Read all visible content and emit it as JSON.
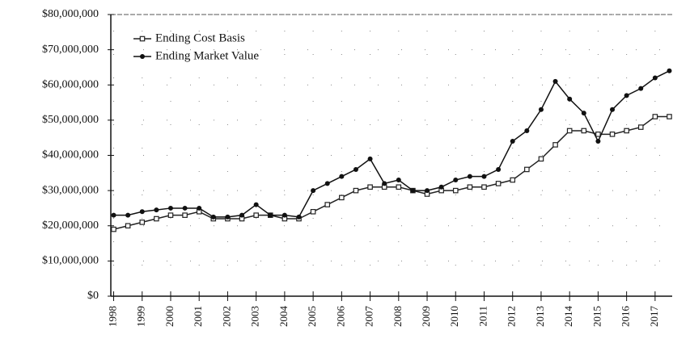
{
  "chart_data": {
    "type": "line",
    "x": [
      1998,
      1998.5,
      1999,
      1999.5,
      2000,
      2000.5,
      2001,
      2001.5,
      2002,
      2002.5,
      2003,
      2003.5,
      2004,
      2004.5,
      2005,
      2005.5,
      2006,
      2006.5,
      2007,
      2007.5,
      2008,
      2008.5,
      2009,
      2009.5,
      2010,
      2010.5,
      2011,
      2011.5,
      2012,
      2012.5,
      2013,
      2013.5,
      2014,
      2014.5,
      2015,
      2015.5,
      2016,
      2016.5,
      2017,
      2017.5
    ],
    "series": [
      {
        "name": "Ending Cost Basis",
        "color": "#222222",
        "marker": "square",
        "values": [
          19000000,
          20000000,
          21000000,
          22000000,
          23000000,
          23000000,
          24000000,
          22000000,
          22000000,
          22000000,
          23000000,
          23000000,
          22000000,
          22000000,
          24000000,
          26000000,
          28000000,
          30000000,
          31000000,
          31000000,
          31000000,
          30000000,
          29000000,
          30000000,
          30000000,
          31000000,
          31000000,
          32000000,
          33000000,
          36000000,
          39000000,
          43000000,
          47000000,
          47000000,
          46000000,
          46000000,
          47000000,
          48000000,
          51000000,
          51000000
        ]
      },
      {
        "name": "Ending Market Value",
        "color": "#111111",
        "marker": "circle",
        "values": [
          23000000,
          23000000,
          24000000,
          24500000,
          25000000,
          25000000,
          25000000,
          22500000,
          22500000,
          23000000,
          26000000,
          23000000,
          23000000,
          22500000,
          30000000,
          32000000,
          34000000,
          36000000,
          39000000,
          32000000,
          33000000,
          30000000,
          30000000,
          31000000,
          33000000,
          34000000,
          34000000,
          36000000,
          44000000,
          47000000,
          53000000,
          61000000,
          56000000,
          52000000,
          44000000,
          53000000,
          57000000,
          59000000,
          62000000,
          64000000
        ]
      }
    ],
    "xlim": [
      1997.9,
      2017.6
    ],
    "xticks": [
      1998,
      1999,
      2000,
      2001,
      2002,
      2003,
      2004,
      2005,
      2006,
      2007,
      2008,
      2009,
      2010,
      2011,
      2012,
      2013,
      2014,
      2015,
      2016,
      2017
    ],
    "ylim": [
      0,
      80000000
    ],
    "yticks": [
      {
        "value": 0,
        "label": "$0"
      },
      {
        "value": 10000000,
        "label": "$10,000,000"
      },
      {
        "value": 20000000,
        "label": "$20,000,000"
      },
      {
        "value": 30000000,
        "label": "$30,000,000"
      },
      {
        "value": 40000000,
        "label": "$40,000,000"
      },
      {
        "value": 50000000,
        "label": "$50,000,000"
      },
      {
        "value": 60000000,
        "label": "$60,000,000"
      },
      {
        "value": 70000000,
        "label": "$70,000,000"
      },
      {
        "value": 80000000,
        "label": "$80,000,000"
      }
    ],
    "grid": true,
    "legend": "upper left"
  }
}
